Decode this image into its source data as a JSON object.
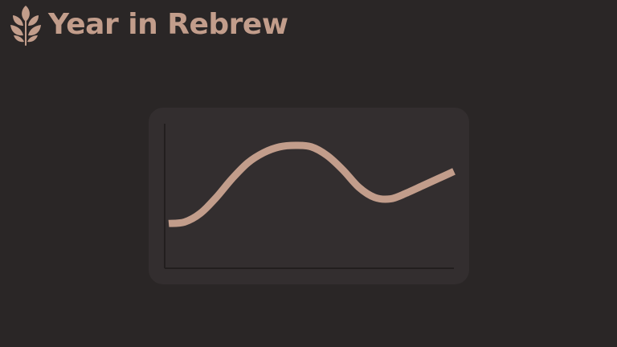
{
  "app": {
    "title": "Year in Rebrew",
    "logo_icon": "coffee-leaf-logo-icon"
  },
  "colors": {
    "background": "#2a2626",
    "card": "#332e2f",
    "accent": "#c29d8b",
    "axis": "#221e1e"
  },
  "chart_data": {
    "type": "line",
    "title": "",
    "xlabel": "",
    "ylabel": "",
    "x": [
      0,
      1,
      2,
      3,
      4,
      5,
      6,
      7,
      8,
      9,
      10,
      11,
      12,
      13,
      14,
      15,
      16,
      17,
      18
    ],
    "series": [
      {
        "values": [
          0.31,
          0.32,
          0.38,
          0.49,
          0.62,
          0.73,
          0.8,
          0.84,
          0.85,
          0.84,
          0.78,
          0.68,
          0.56,
          0.49,
          0.48,
          0.52,
          0.57,
          0.62,
          0.67
        ]
      }
    ],
    "xlim": [
      0,
      18
    ],
    "ylim": [
      0,
      1
    ],
    "grid": false,
    "legend": "none"
  }
}
